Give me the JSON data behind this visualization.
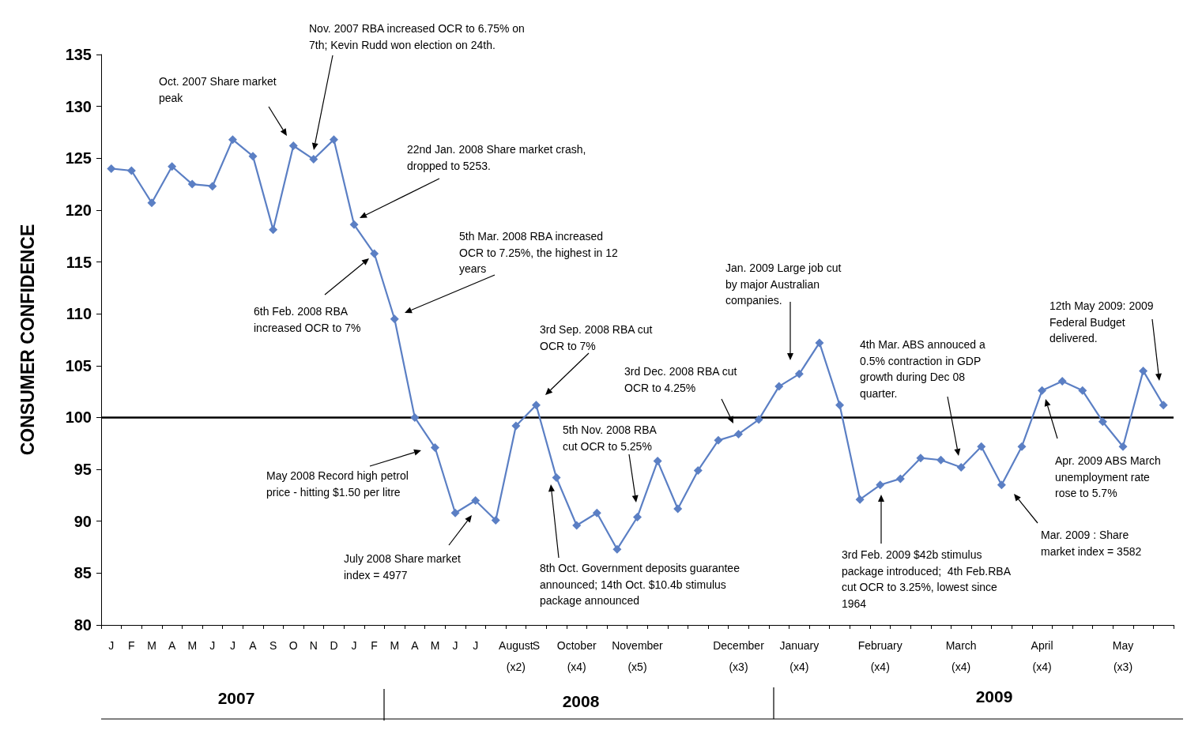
{
  "chart_data": {
    "type": "line",
    "ylabel": "CONSUMER CONFIDENCE",
    "categories": [
      "J",
      "F",
      "M",
      "A",
      "M",
      "J",
      "J",
      "A",
      "S",
      "O",
      "N",
      "D",
      "J",
      "F",
      "M",
      "A",
      "M",
      "J",
      "J",
      null,
      "August\n(x2)",
      "S",
      null,
      "October\n(x4)",
      null,
      null,
      "November\n(x5)",
      null,
      null,
      null,
      null,
      "December\n(x3)",
      null,
      null,
      "January\n(x4)",
      null,
      null,
      null,
      "February\n(x4)",
      null,
      null,
      null,
      "March\n(x4)",
      null,
      null,
      null,
      "April\n(x4)",
      null,
      null,
      null,
      "May\n(x3)",
      null,
      null
    ],
    "values": [
      124,
      123.8,
      120.7,
      124.2,
      122.5,
      122.3,
      126.8,
      125.2,
      118.1,
      126.2,
      124.9,
      126.8,
      118.6,
      115.8,
      109.5,
      100,
      97.1,
      90.8,
      92,
      90.1,
      99.2,
      101.2,
      94.2,
      89.6,
      90.8,
      87.3,
      90.4,
      95.8,
      91.2,
      94.9,
      97.8,
      98.4,
      99.8,
      103,
      104.2,
      107.2,
      101.2,
      92.1,
      93.5,
      94.1,
      96.1,
      95.9,
      95.2,
      97.2,
      93.5,
      97.2,
      102.6,
      103.5,
      102.6,
      99.6,
      97.2,
      104.5,
      101.2
    ],
    "color": "#5b7fc4",
    "marker": "diamond",
    "grid": false,
    "ylim": [
      80,
      135
    ],
    "yticks": [
      80,
      85,
      90,
      95,
      100,
      105,
      110,
      115,
      120,
      125,
      130,
      135
    ],
    "ref_lines": [
      {
        "axis": "y",
        "value": 100,
        "color": "#000000"
      }
    ],
    "annotations": [
      "Nov. 2007 RBA increased OCR to 6.75% on\n7th; Kevin Rudd won election on 24th.",
      "Oct. 2007 Share market\npeak",
      "22nd Jan. 2008 Share market crash,\ndropped to 5253.",
      "5th Mar. 2008 RBA increased\nOCR to 7.25%, the highest in 12\nyears",
      "6th Feb. 2008 RBA\nincreased OCR to 7%",
      "May 2008 Record high petrol\nprice - hitting $1.50 per litre",
      "July 2008 Share market\nindex = 4977",
      "3rd Sep. 2008 RBA cut\nOCR to 7%",
      "5th Nov. 2008 RBA\ncut OCR to 5.25%",
      "8th Oct. Government deposits guarantee\nannounced; 14th Oct. $10.4b stimulus\npackage announced",
      "3rd Dec. 2008 RBA cut\nOCR to 4.25%",
      "Jan. 2009 Large job cut\nby major Australian\ncompanies.",
      "4th Mar. ABS annouced a\n0.5% contraction in GDP\ngrowth during Dec 08\nquarter.",
      "3rd Feb. 2009 $42b stimulus\npackage introduced;  4th Feb.RBA\ncut OCR to 3.25%, lowest since\n1964",
      "12th May 2009: 2009\nFederal Budget\ndelivered.",
      "Apr. 2009 ABS March\nunemployment rate\nrose to 5.7%",
      "Mar. 2009 : Share\nmarket index = 3582",
      "2007",
      "2008",
      "2009"
    ]
  }
}
